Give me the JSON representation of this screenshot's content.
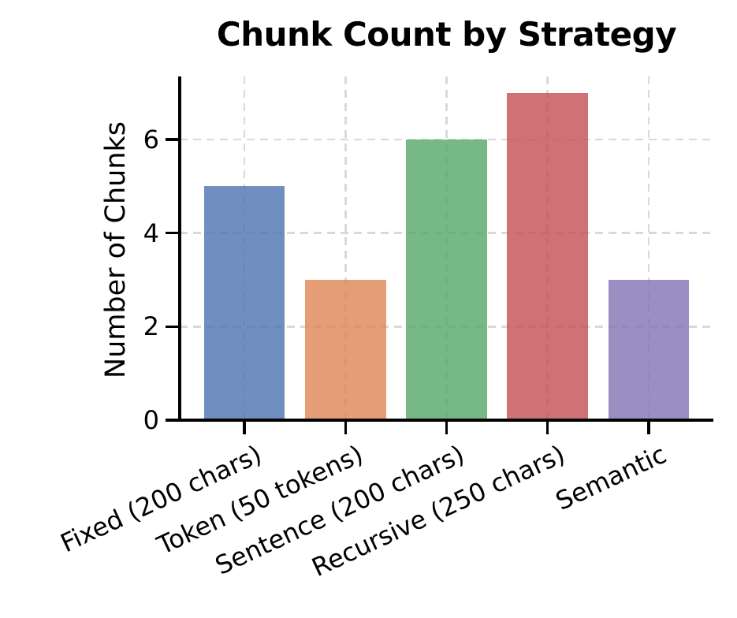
{
  "chart_data": {
    "type": "bar",
    "title": "Chunk Count by Strategy",
    "ylabel": "Number of Chunks",
    "categories": [
      "Fixed (200 chars)",
      "Token (50 tokens)",
      "Sentence (200 chars)",
      "Recursive (250 chars)",
      "Semantic"
    ],
    "values": [
      5,
      3,
      6,
      7,
      3
    ],
    "bar_colors": [
      "#4C72B0",
      "#DD8452",
      "#55A868",
      "#C44E52",
      "#8172B3"
    ],
    "bar_alpha": 0.8,
    "yticks": [
      0,
      2,
      4,
      6
    ],
    "ytick_labels": [
      "0",
      "2",
      "4",
      "6"
    ],
    "ylim": [
      0,
      7.35
    ],
    "grid": "dashed, horizontal and vertical",
    "grid_color": "#d9d9d9",
    "axis_color": "#000000",
    "background": "#ffffff",
    "legend": null,
    "x_tick_rotation_deg": 25
  }
}
